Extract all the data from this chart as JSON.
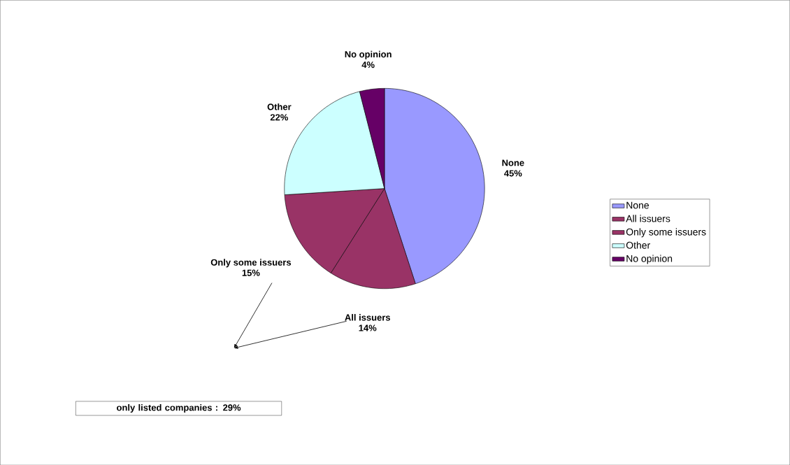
{
  "chart_data": {
    "type": "pie",
    "categories": [
      "None",
      "All issuers",
      "Only some issuers",
      "Other",
      "No opinion"
    ],
    "values": [
      45,
      14,
      15,
      22,
      4
    ],
    "value_labels": [
      "45%",
      "14%",
      "15%",
      "22%",
      "4%"
    ],
    "colors": [
      "#9999ff",
      "#993366",
      "#993366",
      "#ccffff",
      "#660066"
    ],
    "legend": "right",
    "annotations": [
      "only listed companies : 29%"
    ]
  }
}
